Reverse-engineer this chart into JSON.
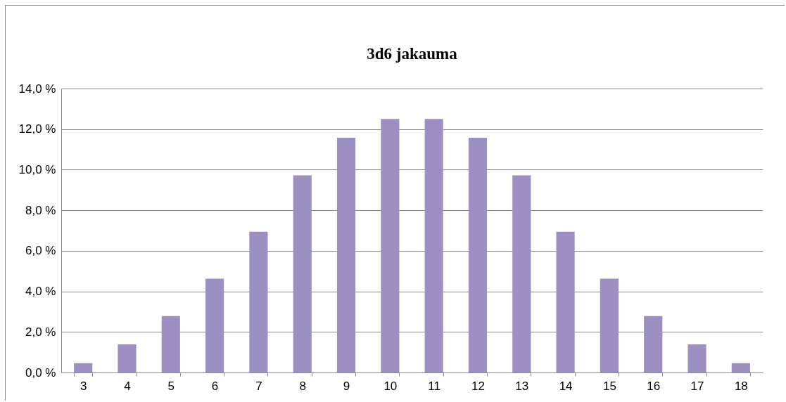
{
  "chart_data": {
    "type": "bar",
    "title": "3d6 jakauma",
    "categories": [
      "3",
      "4",
      "5",
      "6",
      "7",
      "8",
      "9",
      "10",
      "11",
      "12",
      "13",
      "14",
      "15",
      "16",
      "17",
      "18"
    ],
    "values": [
      0.46,
      1.39,
      2.78,
      4.63,
      6.94,
      9.72,
      11.57,
      12.5,
      12.5,
      11.57,
      9.72,
      6.94,
      4.63,
      2.78,
      1.39,
      0.46
    ],
    "color": "#9e8fc2",
    "ylim": [
      0,
      14
    ],
    "yticks": [
      {
        "value": 0,
        "label": "0,0 %"
      },
      {
        "value": 2,
        "label": "2,0 %"
      },
      {
        "value": 4,
        "label": "4,0 %"
      },
      {
        "value": 6,
        "label": "6,0 %"
      },
      {
        "value": 8,
        "label": "8,0 %"
      },
      {
        "value": 10,
        "label": "10,0 %"
      },
      {
        "value": 12,
        "label": "12,0 %"
      },
      {
        "value": 14,
        "label": "14,0 %"
      }
    ],
    "grid": "y"
  }
}
